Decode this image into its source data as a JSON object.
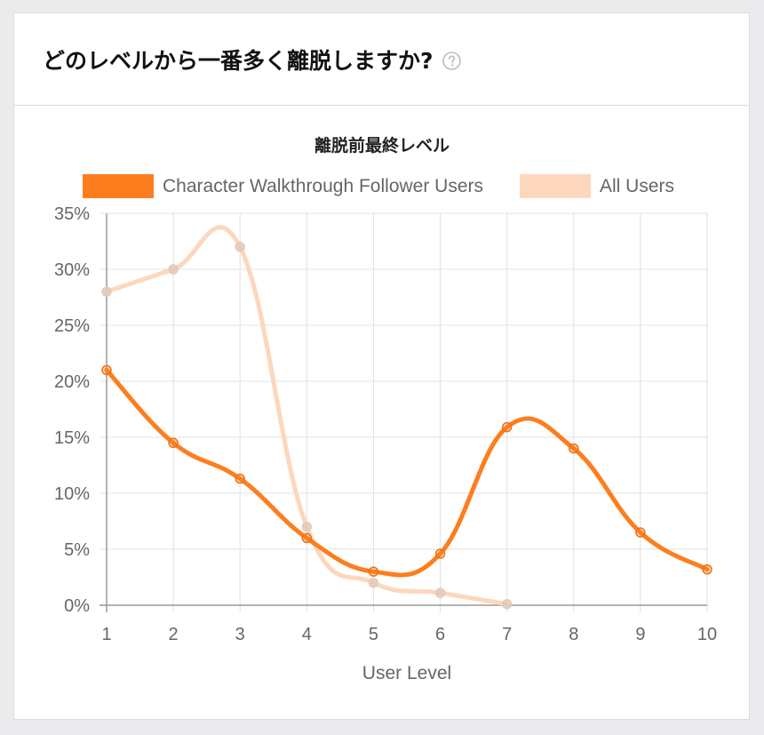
{
  "card": {
    "title": "どのレベルから一番多く離脱しますか?",
    "help_icon": "question-circle-icon"
  },
  "chart_data": {
    "type": "line",
    "title": "離脱前最終レベル",
    "xlabel": "User Level",
    "ylabel": "",
    "x": [
      1,
      2,
      3,
      4,
      5,
      6,
      7,
      8,
      9,
      10
    ],
    "x_tick_labels": [
      "1",
      "2",
      "3",
      "4",
      "5",
      "6",
      "7",
      "8",
      "9",
      "10"
    ],
    "y_ticks": [
      0,
      5,
      10,
      15,
      20,
      25,
      30,
      35
    ],
    "y_tick_labels": [
      "0%",
      "5%",
      "10%",
      "15%",
      "20%",
      "25%",
      "30%",
      "35%"
    ],
    "ylim": [
      0,
      35
    ],
    "grid": true,
    "legend_position": "top",
    "series": [
      {
        "name": "Character Walkthrough Follower Users",
        "color": "#fd7e1e",
        "values": [
          21,
          14.5,
          11.3,
          6,
          3,
          4.6,
          15.9,
          14,
          6.5,
          3.2
        ]
      },
      {
        "name": "All Users",
        "color": "#fdd7bd",
        "values": [
          28,
          30,
          32,
          7,
          2,
          1.1,
          0.1,
          null,
          null,
          null
        ]
      }
    ]
  }
}
